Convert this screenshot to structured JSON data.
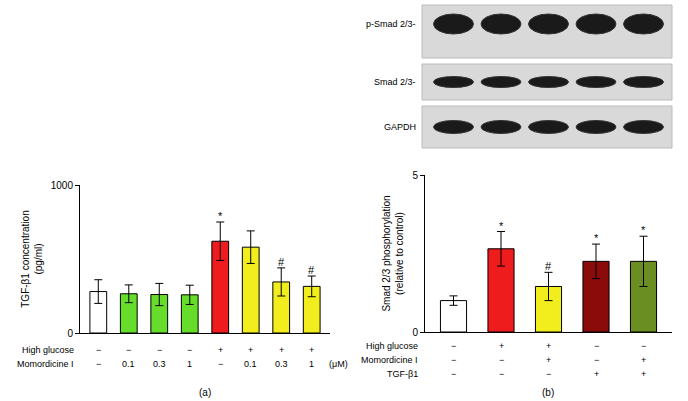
{
  "chart_data": [
    {
      "type": "bar",
      "panel_label": "(a)",
      "y_label": "TGF-β1 concentration\n(pg/ml)",
      "categories": [
        null,
        null,
        null,
        null,
        null,
        null,
        null,
        null
      ],
      "values": [
        280,
        265,
        260,
        258,
        620,
        580,
        345,
        315
      ],
      "errors": [
        80,
        60,
        75,
        65,
        130,
        110,
        95,
        70
      ],
      "colors": [
        "#ffffff",
        "#66dd2a",
        "#66dd2a",
        "#66dd2a",
        "#ee1c1c",
        "#f2ee1e",
        "#f2ee1e",
        "#f2ee1e"
      ],
      "significance": [
        null,
        null,
        null,
        null,
        "*",
        null,
        "#",
        "#"
      ],
      "conditions": [
        {
          "label": "High glucose",
          "values": [
            "−",
            "−",
            "−",
            "−",
            "+",
            "+",
            "+",
            "+"
          ]
        },
        {
          "label": "Momordicine I",
          "values": [
            "−",
            "0.1",
            "0.3",
            "1",
            "−",
            "0.1",
            "0.3",
            "1"
          ]
        }
      ],
      "unit_note": "(μM)",
      "ylim": [
        0,
        1000
      ],
      "yticks": [
        0,
        1000
      ],
      "grid": false,
      "tick_labels": "y"
    },
    {
      "type": "bar",
      "panel_label": "(b)",
      "y_label": "Smad 2/3 phosphorylation\n(relative to control)",
      "blot_labels": [
        "p-Smad 2/3-",
        "Smad 2/3-",
        "GAPDH"
      ],
      "categories": [
        null,
        null,
        null,
        null,
        null
      ],
      "values": [
        1.0,
        2.65,
        1.45,
        2.25,
        2.25
      ],
      "errors": [
        0.15,
        0.55,
        0.45,
        0.55,
        0.8
      ],
      "colors": [
        "#ffffff",
        "#ee1c1c",
        "#f2ee1e",
        "#8b0a0a",
        "#6b8e23"
      ],
      "significance": [
        null,
        "*",
        "#",
        "*",
        "*"
      ],
      "conditions": [
        {
          "label": "High glucose",
          "values": [
            "−",
            "+",
            "+",
            "−",
            "−"
          ]
        },
        {
          "label": "Momordicine I",
          "values": [
            "−",
            "−",
            "+",
            "−",
            "+"
          ]
        },
        {
          "label": "TGF-β1",
          "values": [
            "−",
            "−",
            "−",
            "+",
            "+"
          ]
        }
      ],
      "ylim": [
        0,
        5
      ],
      "yticks": [
        0,
        5
      ],
      "grid": false,
      "tick_labels": "y"
    }
  ]
}
